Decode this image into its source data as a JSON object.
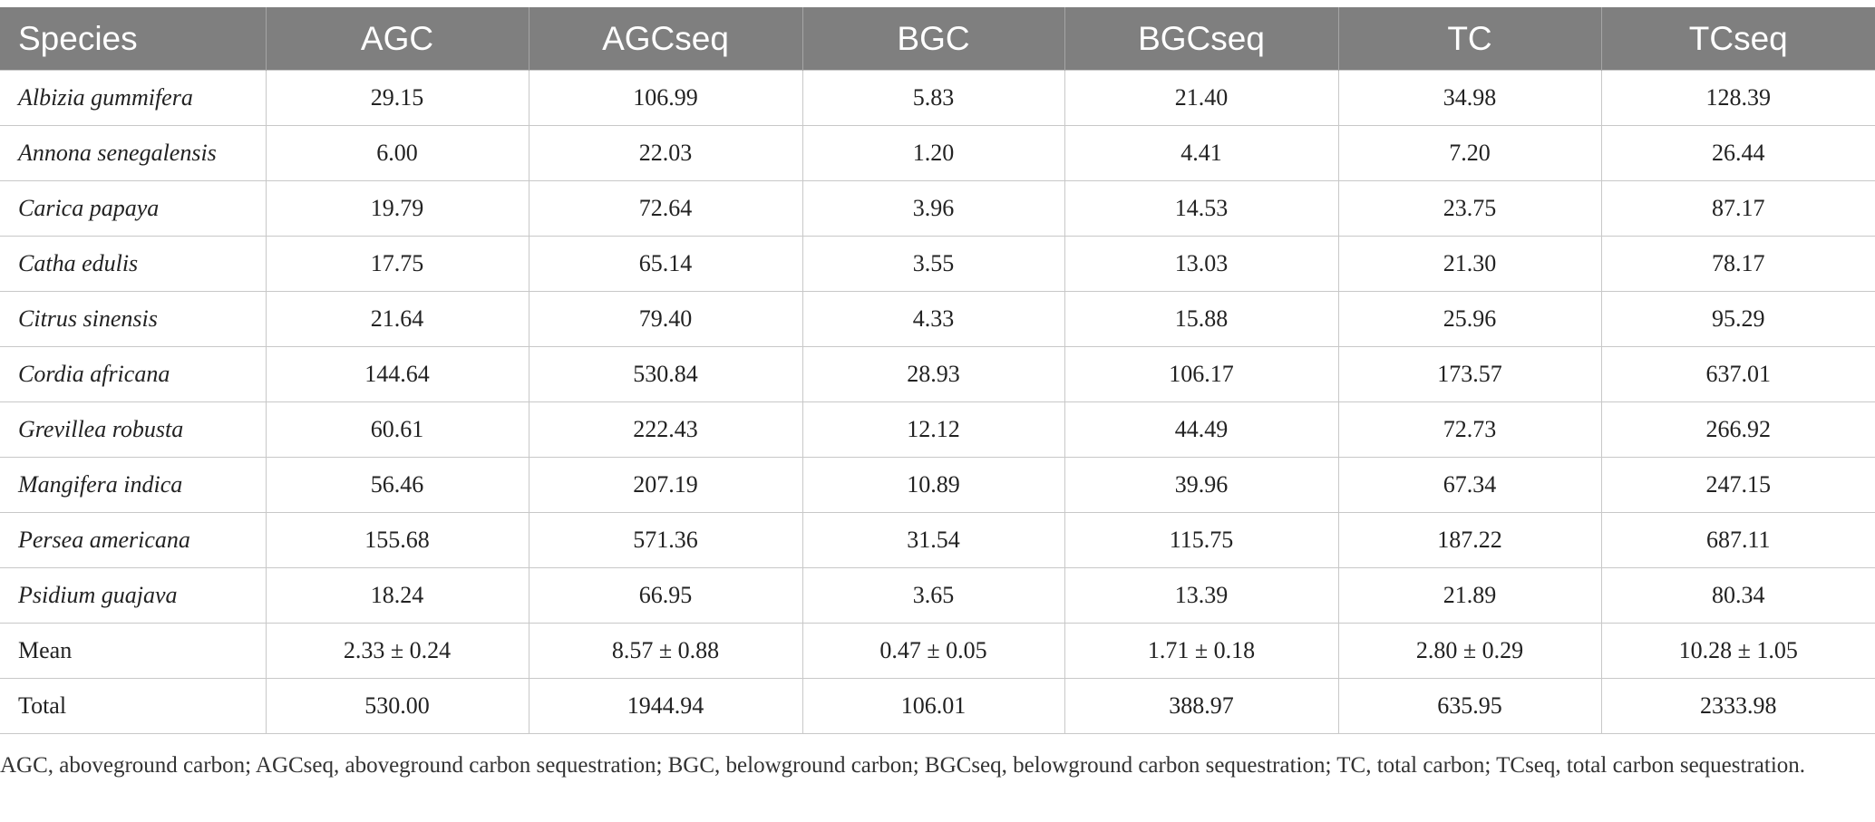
{
  "table": {
    "columns": [
      "Species",
      "AGC",
      "AGCseq",
      "BGC",
      "BGCseq",
      "TC",
      "TCseq"
    ],
    "rows": [
      [
        "Albizia gummifera",
        "29.15",
        "106.99",
        "5.83",
        "21.40",
        "34.98",
        "128.39"
      ],
      [
        "Annona senegalensis",
        "6.00",
        "22.03",
        "1.20",
        "4.41",
        "7.20",
        "26.44"
      ],
      [
        "Carica papaya",
        "19.79",
        "72.64",
        "3.96",
        "14.53",
        "23.75",
        "87.17"
      ],
      [
        "Catha edulis",
        "17.75",
        "65.14",
        "3.55",
        "13.03",
        "21.30",
        "78.17"
      ],
      [
        "Citrus sinensis",
        "21.64",
        "79.40",
        "4.33",
        "15.88",
        "25.96",
        "95.29"
      ],
      [
        "Cordia africana",
        "144.64",
        "530.84",
        "28.93",
        "106.17",
        "173.57",
        "637.01"
      ],
      [
        "Grevillea robusta",
        "60.61",
        "222.43",
        "12.12",
        "44.49",
        "72.73",
        "266.92"
      ],
      [
        "Mangifera indica",
        "56.46",
        "207.19",
        "10.89",
        "39.96",
        "67.34",
        "247.15"
      ],
      [
        "Persea americana",
        "155.68",
        "571.36",
        "31.54",
        "115.75",
        "187.22",
        "687.11"
      ],
      [
        "Psidium guajava",
        "18.24",
        "66.95",
        "3.65",
        "13.39",
        "21.89",
        "80.34"
      ],
      [
        "Mean",
        "2.33 ± 0.24",
        "8.57 ± 0.88",
        "0.47 ± 0.05",
        "1.71 ± 0.18",
        "2.80 ± 0.29",
        "10.28 ± 1.05"
      ],
      [
        "Total",
        "530.00",
        "1944.94",
        "106.01",
        "388.97",
        "635.95",
        "2333.98"
      ]
    ],
    "italic_rows": 10
  },
  "footnote": "AGC, aboveground carbon; AGCseq, aboveground carbon sequestration; BGC, belowground carbon; BGCseq, belowground carbon sequestration; TC, total carbon; TCseq, total carbon sequestration."
}
